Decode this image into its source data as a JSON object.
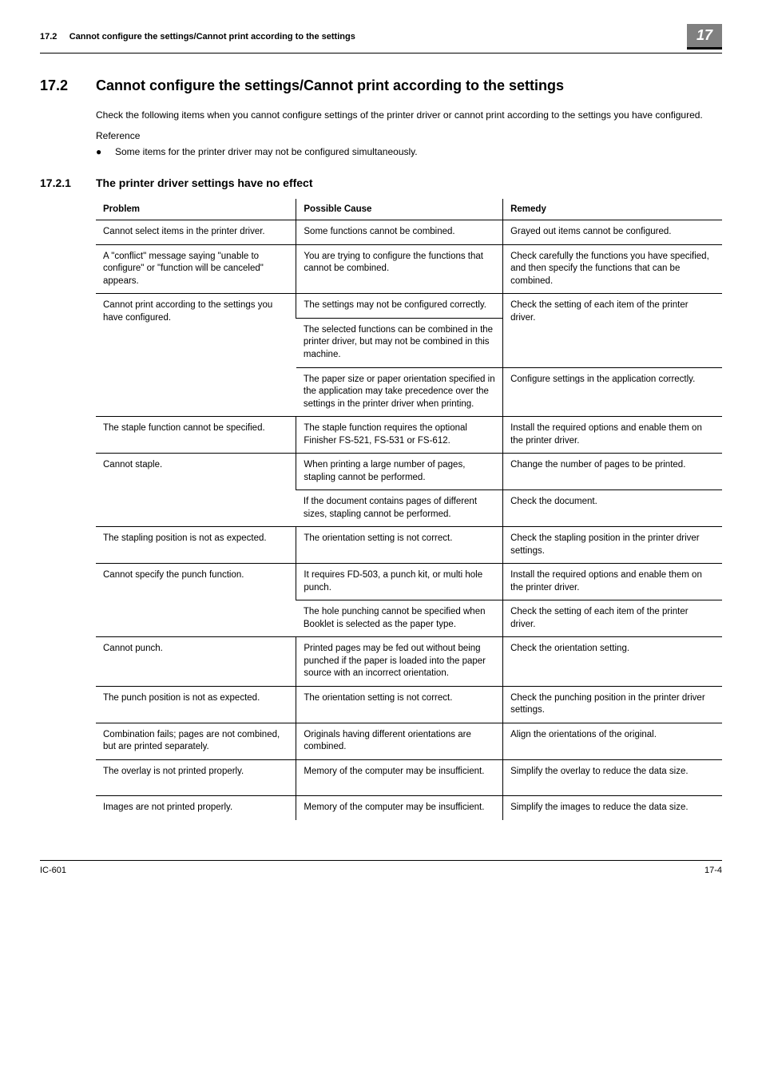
{
  "header": {
    "sectionRef": "17.2",
    "title": "Cannot configure the settings/Cannot print according to the settings",
    "chapterNumber": "17"
  },
  "section": {
    "number": "17.2",
    "title": "Cannot configure the settings/Cannot print according to the settings",
    "bodyText": "Check the following items when you cannot configure settings of the printer driver or cannot print according to the settings you have configured.",
    "referenceLabel": "Reference",
    "bulletText": "Some items for the printer driver may not be configured simultaneously."
  },
  "subsection": {
    "number": "17.2.1",
    "title": "The printer driver settings have no effect"
  },
  "table": {
    "headers": [
      "Problem",
      "Possible Cause",
      "Remedy"
    ],
    "rows": [
      {
        "problem": "Cannot select items in the printer driver.",
        "cause": "Some functions cannot be combined.",
        "remedy": "Grayed out items cannot be configured.",
        "rowspan": {
          "p": 1,
          "c": 1,
          "r": 1
        }
      },
      {
        "problem": "A \"conflict\" message saying \"unable to configure\" or \"function will be canceled\" appears.",
        "cause": "You are trying to configure the functions that cannot be combined.",
        "remedy": "Check carefully the functions you have specified, and then specify the functions that can be combined.",
        "rowspan": {
          "p": 1,
          "c": 1,
          "r": 1
        }
      },
      {
        "problem": "Cannot print according to the settings you have configured.",
        "cause": "The settings may not be configured correctly.",
        "remedy": "Check the setting of each item of the printer driver.",
        "rowspan": {
          "p": 3,
          "c": 1,
          "r": 2
        }
      },
      {
        "problem": "",
        "cause": "The selected functions can be combined in the printer driver, but may not be combined in this machine.",
        "remedy": "",
        "rowspan": {
          "p": 0,
          "c": 1,
          "r": 0
        }
      },
      {
        "problem": "",
        "cause": "The paper size or paper orientation specified in the application may take precedence over the settings in the printer driver when printing.",
        "remedy": "Configure settings in the application correctly.",
        "rowspan": {
          "p": 0,
          "c": 1,
          "r": 1
        }
      },
      {
        "problem": "The staple function cannot be specified.",
        "cause": "The staple function requires the optional Finisher FS-521, FS-531 or FS-612.",
        "remedy": "Install the required options and enable them on the printer driver.",
        "rowspan": {
          "p": 1,
          "c": 1,
          "r": 1
        }
      },
      {
        "problem": "Cannot staple.",
        "cause": "When printing a large number of pages, stapling cannot be performed.",
        "remedy": "Change the number of pages to be printed.",
        "rowspan": {
          "p": 2,
          "c": 1,
          "r": 1
        }
      },
      {
        "problem": "",
        "cause": "If the document contains pages of different sizes, stapling cannot be performed.",
        "remedy": "Check the document.",
        "rowspan": {
          "p": 0,
          "c": 1,
          "r": 1
        }
      },
      {
        "problem": "The stapling position is not as expected.",
        "cause": "The orientation setting is not correct.",
        "remedy": "Check the stapling position in the printer driver settings.",
        "rowspan": {
          "p": 1,
          "c": 1,
          "r": 1
        }
      },
      {
        "problem": "Cannot specify the punch function.",
        "cause": "It requires FD-503,  a punch kit, or multi hole punch.",
        "remedy": "Install the required options and enable them on the printer driver.",
        "rowspan": {
          "p": 2,
          "c": 1,
          "r": 1
        }
      },
      {
        "problem": "",
        "cause": "The hole punching cannot be specified when Booklet is selected as the paper type.",
        "remedy": "Check the setting of each item of the printer driver.",
        "rowspan": {
          "p": 0,
          "c": 1,
          "r": 1
        }
      },
      {
        "problem": "Cannot punch.",
        "cause": "Printed pages may be fed out without being punched if the paper is loaded into the paper source with an incorrect orientation.",
        "remedy": "Check the orientation setting.",
        "rowspan": {
          "p": 1,
          "c": 1,
          "r": 1
        }
      },
      {
        "problem": "The punch position is not as expected.",
        "cause": "The orientation setting is not correct.",
        "remedy": "Check the punching position in the printer driver settings.",
        "rowspan": {
          "p": 1,
          "c": 1,
          "r": 1
        }
      },
      {
        "problem": "Combination fails; pages are not combined, but are printed separately.",
        "cause": "Originals having different orientations are combined.",
        "remedy": "Align the orientations of the original.",
        "rowspan": {
          "p": 1,
          "c": 1,
          "r": 1
        }
      },
      {
        "problem": "The overlay is not printed properly.",
        "cause": "Memory of the computer may be insufficient.",
        "remedy": "Simplify the overlay to reduce the data size.",
        "rowspan": {
          "p": 1,
          "c": 1,
          "r": 1
        },
        "extraBottomSpace": true
      },
      {
        "problem": "Images are not printed properly.",
        "cause": "Memory of the computer may be insufficient.",
        "remedy": "Simplify the images to reduce the data size.",
        "rowspan": {
          "p": 1,
          "c": 1,
          "r": 1
        },
        "noBottomBorder": true
      }
    ]
  },
  "footer": {
    "left": "IC-601",
    "right": "17-4"
  }
}
